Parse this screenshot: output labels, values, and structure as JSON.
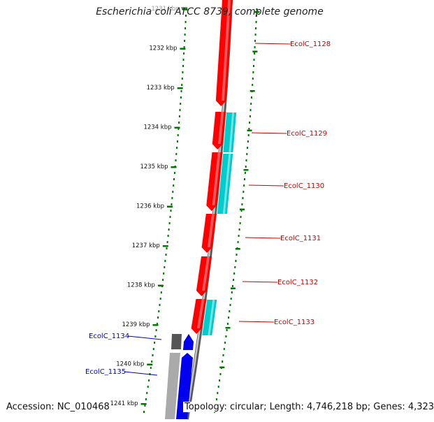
{
  "title": "Escherichia coli ATCC 8739, complete genome",
  "footer": {
    "accession": "Accession: NC_010468",
    "summary": "Topology: circular; Length: 4,746,218 bp; Genes: 4,323"
  },
  "colors": {
    "forward_gene": "#ff0000",
    "reverse_gene": "#0000ee",
    "aux_track": "#00cccc",
    "gray_gene": "#555555",
    "tick": "#007700",
    "backbone": "#888888",
    "label_forward": "#cc0000",
    "label_reverse": "#0000cc"
  },
  "ruler": {
    "unit": "kbp",
    "ticks": [
      "1231 kbp",
      "1232 kbp",
      "1233 kbp",
      "1234 kbp",
      "1235 kbp",
      "1236 kbp",
      "1237 kbp",
      "1238 kbp",
      "1239 kbp",
      "1240 kbp",
      "1241 kbp"
    ]
  },
  "genes": {
    "forward": [
      {
        "label": "EcolC_1128"
      },
      {
        "label": "EcolC_1129"
      },
      {
        "label": "EcolC_1130"
      },
      {
        "label": "EcolC_1131"
      },
      {
        "label": "EcolC_1132"
      },
      {
        "label": "EcolC_1133"
      }
    ],
    "reverse": [
      {
        "label": "EcolC_1134"
      },
      {
        "label": "EcolC_1135"
      }
    ]
  }
}
